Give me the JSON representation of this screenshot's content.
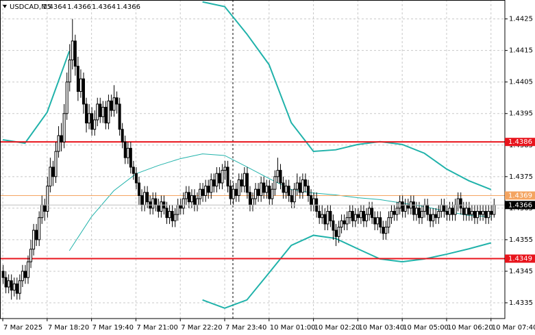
{
  "chart_data": {
    "type": "candlestick",
    "title": "USDCAD,M5",
    "header_values": [
      1.4364,
      1.4366,
      1.4364,
      1.4366
    ],
    "ylim": [
      1.433,
      1.4431
    ],
    "yticks": [
      1.4335,
      1.4345,
      1.4355,
      1.4365,
      1.4375,
      1.4385,
      1.4395,
      1.4405,
      1.4415,
      1.4425
    ],
    "xlim": [
      -1,
      181
    ],
    "xticks": [
      {
        "value": 0,
        "label": "7 Mar 2025"
      },
      {
        "value": 16,
        "label": "7 Mar 18:20"
      },
      {
        "value": 32,
        "label": "7 Mar 19:40"
      },
      {
        "value": 48,
        "label": "7 Mar 21:00"
      },
      {
        "value": 64,
        "label": "7 Mar 22:20"
      },
      {
        "value": 80,
        "label": "7 Mar 23:40"
      },
      {
        "value": 96,
        "label": "10 Mar 01:00"
      },
      {
        "value": 112,
        "label": "10 Mar 02:20"
      },
      {
        "value": 128,
        "label": "10 Mar 03:40"
      },
      {
        "value": 144,
        "label": "10 Mar 05:00"
      },
      {
        "value": 160,
        "label": "10 Mar 06:20"
      },
      {
        "value": 176,
        "label": "10 Mar 07:40"
      }
    ],
    "grid": true,
    "levels": [
      {
        "value": 1.4386,
        "color": "#e8141c"
      },
      {
        "value": 1.4349,
        "color": "#e8141c"
      },
      {
        "value": 1.4369,
        "color": "#f4a460"
      }
    ],
    "last_price": 1.4366,
    "overlays": [
      {
        "color": "#20b2aa",
        "x": [
          0,
          8,
          16,
          24,
          32,
          40,
          48,
          56,
          64,
          72,
          80,
          88,
          96,
          104,
          112,
          120,
          128,
          136,
          144,
          152,
          160,
          168,
          176
        ],
        "values": [
          1.43867,
          1.43856,
          1.43954,
          1.44148,
          null,
          null,
          null,
          null,
          null,
          1.44304,
          1.44289,
          1.44202,
          1.44105,
          1.43921,
          1.4383,
          1.43835,
          1.43852,
          1.43861,
          1.43852,
          1.43824,
          1.43774,
          1.43737,
          1.43709
        ]
      },
      {
        "color": "#20b2aa",
        "x": [
          24,
          32,
          40,
          48,
          56,
          64,
          72,
          80,
          88,
          96,
          104,
          112,
          120,
          128,
          136,
          144,
          152,
          160,
          168,
          176
        ],
        "values": [
          1.43515,
          1.43623,
          1.43705,
          1.43759,
          1.43785,
          1.43807,
          1.43822,
          1.43817,
          1.43781,
          1.43744,
          1.43709,
          1.43698,
          1.43692,
          1.43683,
          1.43677,
          1.43666,
          1.43655,
          1.4364,
          1.43627,
          1.43623
        ]
      },
      {
        "color": "#20b2aa",
        "x": [
          72,
          80,
          88,
          96,
          104,
          112,
          120,
          128,
          136,
          144,
          152,
          160,
          168,
          176
        ],
        "values": [
          1.43359,
          1.43333,
          1.43359,
          1.43445,
          1.43532,
          1.43564,
          1.43554,
          1.43521,
          1.43489,
          1.4348,
          1.43489,
          1.43504,
          1.43521,
          1.4354
        ]
      }
    ],
    "candles": [
      [
        1.4345,
        1.4347,
        1.4341,
        1.4343
      ],
      [
        1.4343,
        1.4345,
        1.4338,
        1.434
      ],
      [
        1.434,
        1.4344,
        1.4338,
        1.4342
      ],
      [
        1.4342,
        1.4344,
        1.4336,
        1.4339
      ],
      [
        1.4339,
        1.4343,
        1.4337,
        1.4341
      ],
      [
        1.4341,
        1.4343,
        1.4336,
        1.4338
      ],
      [
        1.4338,
        1.4344,
        1.4336,
        1.4342
      ],
      [
        1.4342,
        1.4347,
        1.434,
        1.4345
      ],
      [
        1.4345,
        1.4347,
        1.4341,
        1.4343
      ],
      [
        1.4343,
        1.435,
        1.4341,
        1.4348
      ],
      [
        1.4348,
        1.4355,
        1.4346,
        1.4352
      ],
      [
        1.4352,
        1.436,
        1.435,
        1.4358
      ],
      [
        1.4358,
        1.436,
        1.4353,
        1.4355
      ],
      [
        1.4355,
        1.4364,
        1.4353,
        1.4362
      ],
      [
        1.4362,
        1.4369,
        1.436,
        1.4366
      ],
      [
        1.4366,
        1.4368,
        1.4361,
        1.4364
      ],
      [
        1.4364,
        1.4375,
        1.4362,
        1.4372
      ],
      [
        1.4372,
        1.4381,
        1.437,
        1.4378
      ],
      [
        1.4378,
        1.438,
        1.4372,
        1.4375
      ],
      [
        1.4375,
        1.4386,
        1.4373,
        1.4383
      ],
      [
        1.4383,
        1.4391,
        1.4381,
        1.4388
      ],
      [
        1.4388,
        1.4392,
        1.4383,
        1.4386
      ],
      [
        1.4386,
        1.4398,
        1.4384,
        1.4395
      ],
      [
        1.4395,
        1.4408,
        1.4393,
        1.4405
      ],
      [
        1.4405,
        1.4417,
        1.4402,
        1.4412
      ],
      [
        1.4412,
        1.4425,
        1.4409,
        1.4418
      ],
      [
        1.4418,
        1.442,
        1.4407,
        1.441
      ],
      [
        1.441,
        1.4413,
        1.4399,
        1.4402
      ],
      [
        1.4402,
        1.4409,
        1.44,
        1.4406
      ],
      [
        1.4406,
        1.4408,
        1.4395,
        1.4398
      ],
      [
        1.4398,
        1.44,
        1.4389,
        1.4392
      ],
      [
        1.4392,
        1.4398,
        1.439,
        1.4395
      ],
      [
        1.4395,
        1.4397,
        1.4388,
        1.439
      ],
      [
        1.439,
        1.4396,
        1.4388,
        1.4393
      ],
      [
        1.4393,
        1.44,
        1.4391,
        1.4398
      ],
      [
        1.4398,
        1.44,
        1.4392,
        1.4394
      ],
      [
        1.4394,
        1.4399,
        1.4392,
        1.4397
      ],
      [
        1.4397,
        1.4399,
        1.439,
        1.4392
      ],
      [
        1.4392,
        1.4401,
        1.439,
        1.4399
      ],
      [
        1.4399,
        1.4401,
        1.4394,
        1.4396
      ],
      [
        1.4396,
        1.4404,
        1.4394,
        1.44
      ],
      [
        1.44,
        1.4402,
        1.4395,
        1.4398
      ],
      [
        1.4398,
        1.44,
        1.4388,
        1.439
      ],
      [
        1.439,
        1.4392,
        1.4384,
        1.4386
      ],
      [
        1.4386,
        1.4388,
        1.4379,
        1.4381
      ],
      [
        1.4381,
        1.4386,
        1.4379,
        1.4384
      ],
      [
        1.4384,
        1.4386,
        1.4376,
        1.4378
      ],
      [
        1.4378,
        1.438,
        1.4374,
        1.4376
      ],
      [
        1.4376,
        1.4378,
        1.4371,
        1.4373
      ],
      [
        1.4373,
        1.4375,
        1.4366,
        1.4369
      ],
      [
        1.4369,
        1.4371,
        1.4364,
        1.4366
      ],
      [
        1.4366,
        1.4372,
        1.4364,
        1.437
      ],
      [
        1.437,
        1.4372,
        1.4365,
        1.4367
      ],
      [
        1.4367,
        1.4369,
        1.4363,
        1.4365
      ],
      [
        1.4365,
        1.437,
        1.4363,
        1.4368
      ],
      [
        1.4368,
        1.437,
        1.4364,
        1.4366
      ],
      [
        1.4366,
        1.4368,
        1.4362,
        1.4364
      ],
      [
        1.4364,
        1.4369,
        1.4362,
        1.4367
      ],
      [
        1.4367,
        1.4369,
        1.4363,
        1.4365
      ],
      [
        1.4365,
        1.4367,
        1.436,
        1.4362
      ],
      [
        1.4362,
        1.4366,
        1.436,
        1.4364
      ],
      [
        1.4364,
        1.4366,
        1.4359,
        1.4361
      ],
      [
        1.4361,
        1.4365,
        1.4359,
        1.4363
      ],
      [
        1.4363,
        1.4368,
        1.4361,
        1.4366
      ],
      [
        1.4366,
        1.4368,
        1.4363,
        1.4365
      ],
      [
        1.4365,
        1.437,
        1.4363,
        1.4368
      ],
      [
        1.4368,
        1.4372,
        1.4366,
        1.437
      ],
      [
        1.437,
        1.4372,
        1.4365,
        1.4367
      ],
      [
        1.4367,
        1.4371,
        1.4365,
        1.4369
      ],
      [
        1.4369,
        1.4371,
        1.4364,
        1.4366
      ],
      [
        1.4366,
        1.437,
        1.4364,
        1.4368
      ],
      [
        1.4368,
        1.4373,
        1.4366,
        1.4371
      ],
      [
        1.4371,
        1.4373,
        1.4367,
        1.4369
      ],
      [
        1.4369,
        1.4374,
        1.4367,
        1.4372
      ],
      [
        1.4372,
        1.4374,
        1.4368,
        1.437
      ],
      [
        1.437,
        1.4376,
        1.4368,
        1.4374
      ],
      [
        1.4374,
        1.4376,
        1.437,
        1.4372
      ],
      [
        1.4372,
        1.4378,
        1.437,
        1.4376
      ],
      [
        1.4376,
        1.4378,
        1.4371,
        1.4373
      ],
      [
        1.4373,
        1.4379,
        1.4371,
        1.4377
      ],
      [
        1.4377,
        1.438,
        1.4374,
        1.4378
      ],
      [
        1.4378,
        1.438,
        1.437,
        1.4372
      ],
      [
        1.4372,
        1.4374,
        1.4366,
        1.4368
      ],
      [
        1.4368,
        1.4373,
        1.4366,
        1.4371
      ],
      [
        1.4371,
        1.4373,
        1.4367,
        1.4369
      ],
      [
        1.4369,
        1.4376,
        1.4367,
        1.4374
      ],
      [
        1.4374,
        1.4376,
        1.437,
        1.4372
      ],
      [
        1.4372,
        1.4378,
        1.437,
        1.4376
      ],
      [
        1.4376,
        1.4378,
        1.4368,
        1.437
      ],
      [
        1.437,
        1.4372,
        1.4364,
        1.4366
      ],
      [
        1.4366,
        1.437,
        1.4364,
        1.4368
      ],
      [
        1.4368,
        1.4373,
        1.4366,
        1.4371
      ],
      [
        1.4371,
        1.4373,
        1.4367,
        1.4369
      ],
      [
        1.4369,
        1.4375,
        1.4367,
        1.4373
      ],
      [
        1.4373,
        1.4375,
        1.4368,
        1.437
      ],
      [
        1.437,
        1.4374,
        1.4368,
        1.4372
      ],
      [
        1.4372,
        1.4374,
        1.4366,
        1.4368
      ],
      [
        1.4368,
        1.4373,
        1.4366,
        1.4371
      ],
      [
        1.4371,
        1.4377,
        1.4369,
        1.4375
      ],
      [
        1.4375,
        1.4381,
        1.4373,
        1.4377
      ],
      [
        1.4377,
        1.4379,
        1.4371,
        1.4373
      ],
      [
        1.4373,
        1.4375,
        1.4368,
        1.437
      ],
      [
        1.437,
        1.4374,
        1.4368,
        1.4372
      ],
      [
        1.4372,
        1.4374,
        1.4367,
        1.4369
      ],
      [
        1.4369,
        1.4371,
        1.4365,
        1.4367
      ],
      [
        1.4367,
        1.4373,
        1.4365,
        1.4371
      ],
      [
        1.4371,
        1.4376,
        1.4369,
        1.4373
      ],
      [
        1.4373,
        1.4375,
        1.4368,
        1.437
      ],
      [
        1.437,
        1.4376,
        1.4368,
        1.4374
      ],
      [
        1.4374,
        1.4376,
        1.437,
        1.4372
      ],
      [
        1.4372,
        1.4374,
        1.4367,
        1.4369
      ],
      [
        1.4369,
        1.4371,
        1.4364,
        1.4366
      ],
      [
        1.4366,
        1.437,
        1.4364,
        1.4368
      ],
      [
        1.4368,
        1.437,
        1.4362,
        1.4364
      ],
      [
        1.4364,
        1.4366,
        1.436,
        1.4362
      ],
      [
        1.4362,
        1.4366,
        1.436,
        1.4363
      ],
      [
        1.4363,
        1.4365,
        1.4358,
        1.436
      ],
      [
        1.436,
        1.4366,
        1.4358,
        1.4364
      ],
      [
        1.4364,
        1.4366,
        1.4359,
        1.4361
      ],
      [
        1.4361,
        1.4363,
        1.4355,
        1.4358
      ],
      [
        1.4358,
        1.436,
        1.4353,
        1.4356
      ],
      [
        1.4356,
        1.4361,
        1.4354,
        1.4359
      ],
      [
        1.4359,
        1.4363,
        1.4357,
        1.4361
      ],
      [
        1.4361,
        1.4363,
        1.4358,
        1.436
      ],
      [
        1.436,
        1.4364,
        1.4358,
        1.4362
      ],
      [
        1.4362,
        1.4366,
        1.436,
        1.4364
      ],
      [
        1.4364,
        1.4366,
        1.4359,
        1.4361
      ],
      [
        1.4361,
        1.4365,
        1.4359,
        1.4363
      ],
      [
        1.4363,
        1.4365,
        1.436,
        1.4362
      ],
      [
        1.4362,
        1.4366,
        1.436,
        1.4364
      ],
      [
        1.4364,
        1.4366,
        1.4359,
        1.4361
      ],
      [
        1.4361,
        1.4365,
        1.4359,
        1.4363
      ],
      [
        1.4363,
        1.4367,
        1.4361,
        1.4365
      ],
      [
        1.4365,
        1.4367,
        1.436,
        1.4362
      ],
      [
        1.4362,
        1.4364,
        1.4358,
        1.436
      ],
      [
        1.436,
        1.4364,
        1.4358,
        1.4362
      ],
      [
        1.4362,
        1.4364,
        1.4357,
        1.4359
      ],
      [
        1.4359,
        1.4361,
        1.4355,
        1.4357
      ],
      [
        1.4357,
        1.4361,
        1.4355,
        1.4359
      ],
      [
        1.4359,
        1.4364,
        1.4357,
        1.4362
      ],
      [
        1.4362,
        1.4366,
        1.436,
        1.4364
      ],
      [
        1.4364,
        1.4366,
        1.4361,
        1.4363
      ],
      [
        1.4363,
        1.4367,
        1.4361,
        1.4365
      ],
      [
        1.4365,
        1.4369,
        1.4363,
        1.4367
      ],
      [
        1.4367,
        1.4369,
        1.4362,
        1.4364
      ],
      [
        1.4364,
        1.4368,
        1.4362,
        1.4366
      ],
      [
        1.4366,
        1.4368,
        1.4363,
        1.4365
      ],
      [
        1.4365,
        1.4369,
        1.4363,
        1.4367
      ],
      [
        1.4367,
        1.4369,
        1.4361,
        1.4363
      ],
      [
        1.4363,
        1.4367,
        1.4361,
        1.4365
      ],
      [
        1.4365,
        1.4367,
        1.436,
        1.4362
      ],
      [
        1.4362,
        1.4366,
        1.436,
        1.4364
      ],
      [
        1.4364,
        1.4368,
        1.4362,
        1.4366
      ],
      [
        1.4366,
        1.4368,
        1.4361,
        1.4363
      ],
      [
        1.4363,
        1.4365,
        1.4359,
        1.4361
      ],
      [
        1.4361,
        1.4365,
        1.4359,
        1.4363
      ],
      [
        1.4363,
        1.4365,
        1.436,
        1.4362
      ],
      [
        1.4362,
        1.4366,
        1.436,
        1.4364
      ],
      [
        1.4364,
        1.4368,
        1.4362,
        1.4366
      ],
      [
        1.4366,
        1.4368,
        1.4362,
        1.4364
      ],
      [
        1.4364,
        1.4366,
        1.4361,
        1.4363
      ],
      [
        1.4363,
        1.4367,
        1.4361,
        1.4365
      ],
      [
        1.4365,
        1.4367,
        1.4361,
        1.4363
      ],
      [
        1.4363,
        1.4368,
        1.4361,
        1.4366
      ],
      [
        1.4366,
        1.437,
        1.4364,
        1.4368
      ],
      [
        1.4368,
        1.437,
        1.4363,
        1.4365
      ],
      [
        1.4365,
        1.4367,
        1.4361,
        1.4363
      ],
      [
        1.4363,
        1.4367,
        1.4361,
        1.4365
      ],
      [
        1.4365,
        1.4367,
        1.4361,
        1.4363
      ],
      [
        1.4363,
        1.4366,
        1.4361,
        1.4364
      ],
      [
        1.4364,
        1.4366,
        1.436,
        1.4362
      ],
      [
        1.4362,
        1.4366,
        1.436,
        1.4364
      ],
      [
        1.4364,
        1.4366,
        1.4361,
        1.4363
      ],
      [
        1.4363,
        1.4366,
        1.4361,
        1.4364
      ],
      [
        1.4364,
        1.4366,
        1.436,
        1.4362
      ],
      [
        1.4362,
        1.4366,
        1.436,
        1.4364
      ],
      [
        1.4364,
        1.4366,
        1.4361,
        1.4363
      ],
      [
        1.4363,
        1.4368,
        1.4362,
        1.4366
      ]
    ]
  }
}
